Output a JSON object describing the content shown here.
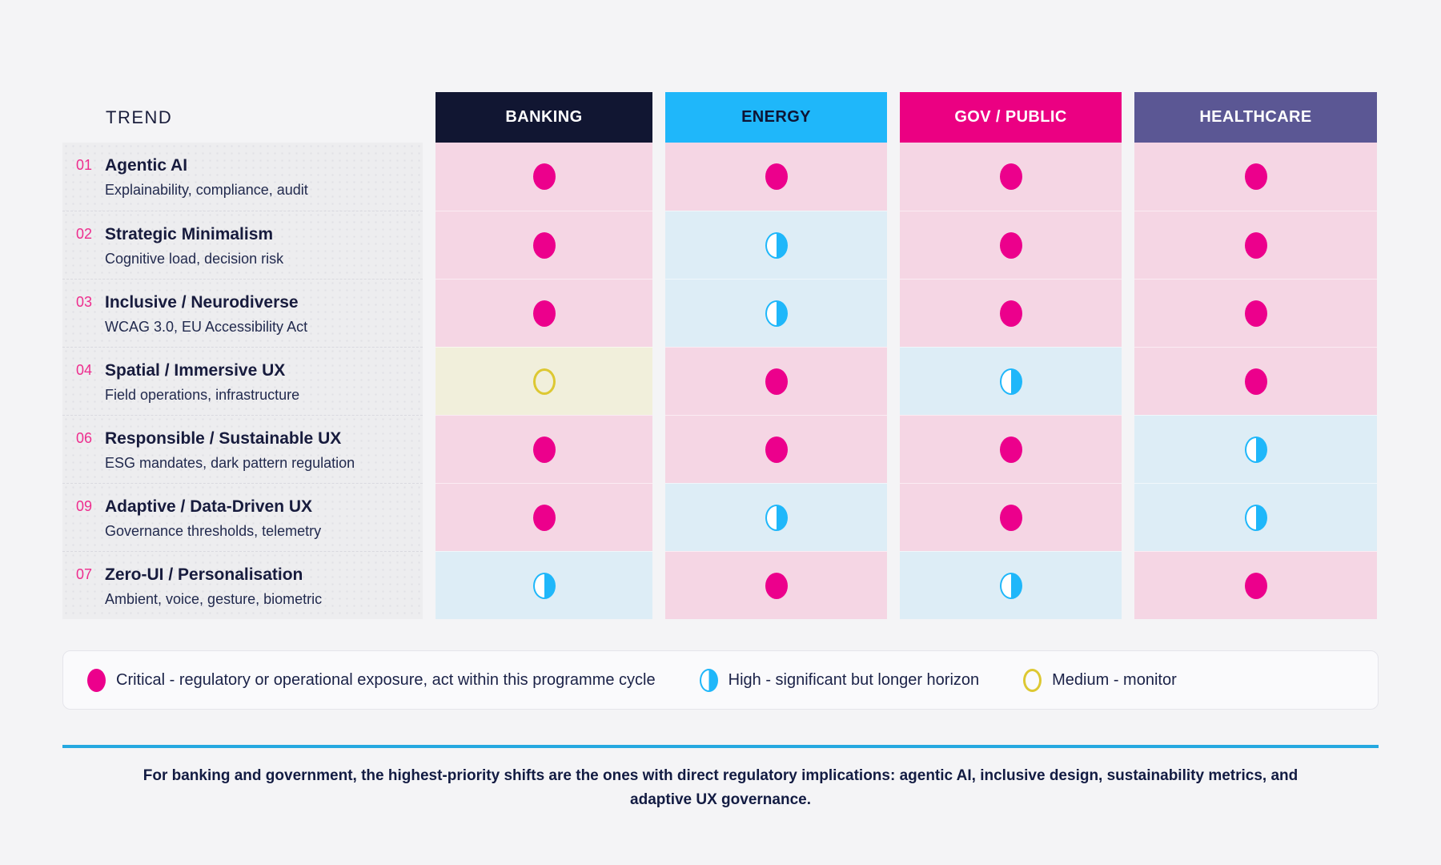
{
  "header": {
    "trend_label": "TREND"
  },
  "chart_data": {
    "type": "heatmap",
    "columns": [
      {
        "label": "BANKING",
        "bg": "#111632",
        "fg": "#FFFFFF"
      },
      {
        "label": "ENERGY",
        "bg": "#1FB7FA",
        "fg": "#0E1434"
      },
      {
        "label": "GOV / PUBLIC",
        "bg": "#EB0082",
        "fg": "#FFFFFF"
      },
      {
        "label": "HEALTHCARE",
        "bg": "#5B5794",
        "fg": "#FFFFFF"
      }
    ],
    "value_scale": [
      "critical",
      "high",
      "medium"
    ],
    "rows": [
      {
        "num": "01",
        "title": "Agentic AI",
        "subtitle": "Explainability, compliance, audit",
        "values": [
          "critical",
          "critical",
          "critical",
          "critical"
        ]
      },
      {
        "num": "02",
        "title": "Strategic Minimalism",
        "subtitle": "Cognitive load, decision risk",
        "values": [
          "critical",
          "high",
          "critical",
          "critical"
        ]
      },
      {
        "num": "03",
        "title": "Inclusive / Neurodiverse",
        "subtitle": "WCAG 3.0, EU Accessibility Act",
        "values": [
          "critical",
          "high",
          "critical",
          "critical"
        ]
      },
      {
        "num": "04",
        "title": "Spatial / Immersive UX",
        "subtitle": "Field operations, infrastructure",
        "values": [
          "medium",
          "critical",
          "high",
          "critical"
        ]
      },
      {
        "num": "06",
        "title": "Responsible / Sustainable UX",
        "subtitle": "ESG mandates, dark pattern regulation",
        "values": [
          "critical",
          "critical",
          "critical",
          "high"
        ]
      },
      {
        "num": "09",
        "title": "Adaptive / Data-Driven UX",
        "subtitle": "Governance thresholds, telemetry",
        "values": [
          "critical",
          "high",
          "critical",
          "high"
        ]
      },
      {
        "num": "07",
        "title": "Zero-UI / Personalisation",
        "subtitle": "Ambient, voice, gesture, biometric",
        "values": [
          "high",
          "critical",
          "high",
          "critical"
        ]
      }
    ]
  },
  "legend": [
    {
      "status": "critical",
      "label": "Critical - regulatory or operational exposure, act within this programme cycle"
    },
    {
      "status": "high",
      "label": "High - significant but longer horizon"
    },
    {
      "status": "medium",
      "label": "Medium - monitor"
    }
  ],
  "footer": {
    "note": "For banking and government, the highest-priority shifts are the ones with direct regulatory implications: agentic AI, inclusive design, sustainability metrics, and adaptive UX governance."
  },
  "colors": {
    "page_bg": "#F4F4F6",
    "panel_bg": "#EDEDEF",
    "number_pink": "#EE2D8E",
    "cell_critical": "#F5D6E4",
    "cell_high": "#DDEDF6",
    "cell_medium": "#F1EFDB",
    "icon_critical": "#EC008C",
    "icon_high": "#1FB7FA",
    "icon_medium": "#DDC832",
    "divider_blue": "#25A8E0",
    "legend_bg": "#FAFAFC",
    "legend_border": "#E5E5EB"
  }
}
